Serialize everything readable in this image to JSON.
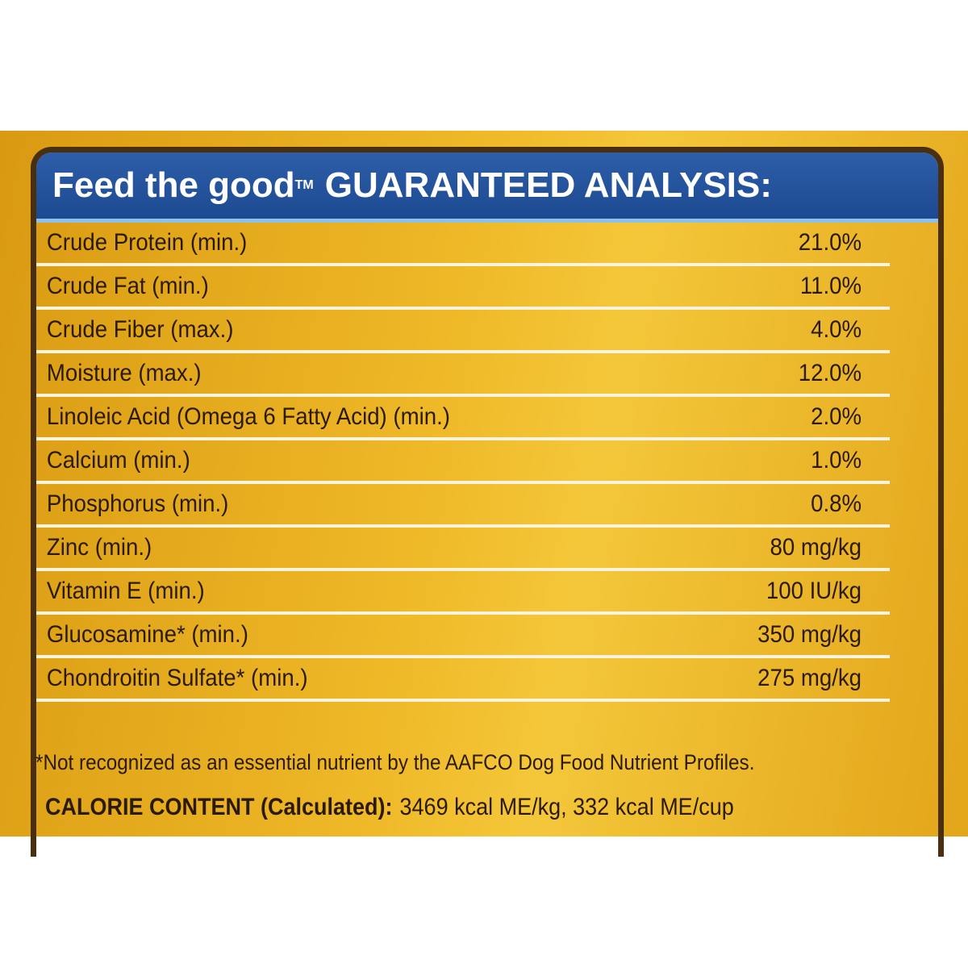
{
  "header": {
    "brand": "Feed the good",
    "trademark": "TM",
    "title": "GUARANTEED ANALYSIS:"
  },
  "table": {
    "rows": [
      [
        "Crude Protein (min.)",
        "21.0%"
      ],
      [
        "Crude Fat (min.)",
        "11.0%"
      ],
      [
        "Crude Fiber (max.)",
        "4.0%"
      ],
      [
        "Moisture (max.)",
        "12.0%"
      ],
      [
        "Linoleic Acid (Omega 6 Fatty Acid) (min.)",
        "2.0%"
      ],
      [
        "Calcium (min.)",
        "1.0%"
      ],
      [
        "Phosphorus (min.)",
        "0.8%"
      ],
      [
        "Zinc (min.)",
        "80 mg/kg"
      ],
      [
        "Vitamin E (min.)",
        "100 IU/kg"
      ],
      [
        "Glucosamine* (min.)",
        "350 mg/kg"
      ],
      [
        "Chondroitin Sulfate* (min.)",
        "275 mg/kg"
      ]
    ]
  },
  "footnote": "*Not recognized as an essential nutrient by the AAFCO Dog Food Nutrient Profiles.",
  "calorie": {
    "label": "CALORIE CONTENT (Calculated):",
    "value": "3469 kcal ME/kg, 332 kcal ME/cup"
  }
}
